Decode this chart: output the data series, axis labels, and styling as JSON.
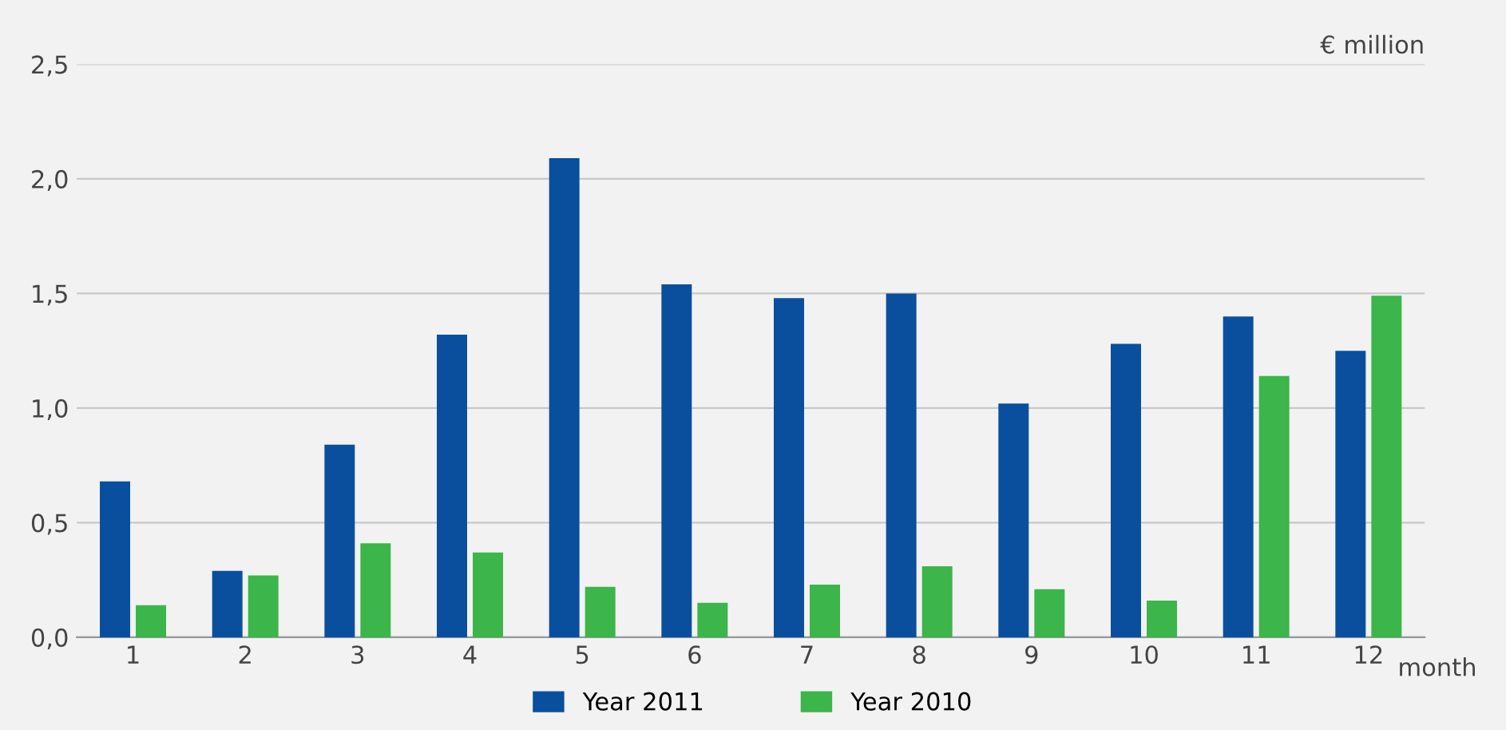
{
  "chart_data": {
    "type": "bar",
    "xlabel": "month",
    "ylabel": "€ million",
    "categories": [
      "1",
      "2",
      "3",
      "4",
      "5",
      "6",
      "7",
      "8",
      "9",
      "10",
      "11",
      "12"
    ],
    "series": [
      {
        "name": "Year 2011",
        "color": "#0a4f9e",
        "values": [
          0.68,
          0.29,
          0.84,
          1.32,
          2.09,
          1.54,
          1.48,
          1.5,
          1.02,
          1.28,
          1.4,
          1.25
        ]
      },
      {
        "name": "Year 2010",
        "color": "#3cb54a",
        "values": [
          0.14,
          0.27,
          0.41,
          0.37,
          0.22,
          0.15,
          0.23,
          0.31,
          0.21,
          0.16,
          1.14,
          1.49
        ]
      }
    ],
    "ylim": [
      0,
      2.5
    ],
    "yticks": [
      {
        "value": 0,
        "label": "0,0"
      },
      {
        "value": 0.5,
        "label": "0,5"
      },
      {
        "value": 1,
        "label": "1,0"
      },
      {
        "value": 1.5,
        "label": "1,5"
      },
      {
        "value": 2,
        "label": "2,0"
      },
      {
        "value": 2.5,
        "label": "2,5"
      }
    ],
    "grid": "y",
    "legend": "bottom"
  }
}
